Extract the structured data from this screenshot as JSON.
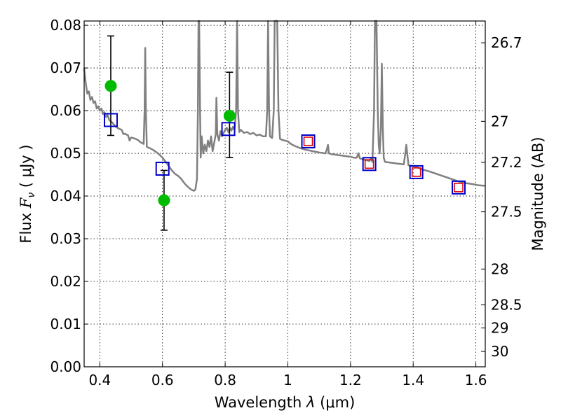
{
  "chart_data": {
    "type": "scatter",
    "xlabel_prefix": "Wavelength",
    "xlabel_symbol": "λ",
    "xlabel_unit": "(μm)",
    "ylabel_prefix": "Flux",
    "ylabel_symbol": "F",
    "ylabel_subscript": "ν",
    "ylabel_unit": "( μJy )",
    "y2label": "Magnitude (AB)",
    "xlim": [
      0.35,
      1.63
    ],
    "ylim": [
      0.0,
      0.081
    ],
    "x_ticks": [
      0.4,
      0.6,
      0.8,
      1.0,
      1.2,
      1.4,
      1.6
    ],
    "x_tick_labels": [
      "0.4",
      "0.6",
      "0.8",
      "1",
      "1.2",
      "1.4",
      "1.6"
    ],
    "y_ticks": [
      0.0,
      0.01,
      0.02,
      0.03,
      0.04,
      0.05,
      0.06,
      0.07,
      0.08
    ],
    "y_tick_labels": [
      "0.00",
      "0.01",
      "0.02",
      "0.03",
      "0.04",
      "0.05",
      "0.06",
      "0.07",
      "0.08"
    ],
    "y2_ticks": [
      {
        "label": "26.7",
        "flux": 0.0759
      },
      {
        "label": "27",
        "flux": 0.0575
      },
      {
        "label": "27.2",
        "flux": 0.0479
      },
      {
        "label": "27.5",
        "flux": 0.0363
      },
      {
        "label": "28",
        "flux": 0.0229
      },
      {
        "label": "28.5",
        "flux": 0.0145
      },
      {
        "label": "29",
        "flux": 0.0091
      },
      {
        "label": "30",
        "flux": 0.0036
      }
    ],
    "grid": true,
    "colors": {
      "sed": "#808080",
      "observed": "#00bb00",
      "model_box": "#0000cc",
      "ir_box": "#dd0000",
      "errorbar": "#000000"
    },
    "series": [
      {
        "kind": "sed_line",
        "points": [
          [
            0.35,
            0.07
          ],
          [
            0.355,
            0.0665
          ],
          [
            0.36,
            0.064
          ],
          [
            0.365,
            0.0645
          ],
          [
            0.37,
            0.0625
          ],
          [
            0.375,
            0.0632
          ],
          [
            0.38,
            0.0618
          ],
          [
            0.385,
            0.0622
          ],
          [
            0.39,
            0.0605
          ],
          [
            0.395,
            0.061
          ],
          [
            0.4,
            0.06
          ],
          [
            0.405,
            0.0605
          ],
          [
            0.41,
            0.0592
          ],
          [
            0.415,
            0.0596
          ],
          [
            0.42,
            0.0585
          ],
          [
            0.425,
            0.059
          ],
          [
            0.43,
            0.0578
          ],
          [
            0.44,
            0.0572
          ],
          [
            0.45,
            0.0563
          ],
          [
            0.46,
            0.0558
          ],
          [
            0.47,
            0.0555
          ],
          [
            0.475,
            0.0545
          ],
          [
            0.48,
            0.0546
          ],
          [
            0.49,
            0.0542
          ],
          [
            0.495,
            0.053
          ],
          [
            0.5,
            0.0537
          ],
          [
            0.51,
            0.0535
          ],
          [
            0.52,
            0.0532
          ],
          [
            0.53,
            0.0526
          ],
          [
            0.54,
            0.0522
          ],
          [
            0.543,
            0.06
          ],
          [
            0.545,
            0.0747
          ],
          [
            0.547,
            0.06
          ],
          [
            0.55,
            0.0515
          ],
          [
            0.56,
            0.0512
          ],
          [
            0.57,
            0.0508
          ],
          [
            0.58,
            0.0503
          ],
          [
            0.59,
            0.0497
          ],
          [
            0.6,
            0.049
          ],
          [
            0.61,
            0.048
          ],
          [
            0.62,
            0.047
          ],
          [
            0.63,
            0.046
          ],
          [
            0.64,
            0.0452
          ],
          [
            0.65,
            0.0447
          ],
          [
            0.66,
            0.044
          ],
          [
            0.67,
            0.043
          ],
          [
            0.68,
            0.0422
          ],
          [
            0.69,
            0.0416
          ],
          [
            0.7,
            0.0412
          ],
          [
            0.705,
            0.0415
          ],
          [
            0.71,
            0.044
          ],
          [
            0.713,
            0.06
          ],
          [
            0.715,
            0.081
          ],
          [
            0.717,
            0.081
          ],
          [
            0.72,
            0.06
          ],
          [
            0.722,
            0.049
          ],
          [
            0.725,
            0.054
          ],
          [
            0.73,
            0.05
          ],
          [
            0.735,
            0.052
          ],
          [
            0.74,
            0.0505
          ],
          [
            0.745,
            0.053
          ],
          [
            0.75,
            0.0515
          ],
          [
            0.755,
            0.054
          ],
          [
            0.76,
            0.0505
          ],
          [
            0.765,
            0.0525
          ],
          [
            0.77,
            0.0545
          ],
          [
            0.772,
            0.063
          ],
          [
            0.775,
            0.0545
          ],
          [
            0.78,
            0.053
          ],
          [
            0.785,
            0.0552
          ],
          [
            0.79,
            0.054
          ],
          [
            0.795,
            0.0548
          ],
          [
            0.8,
            0.0555
          ],
          [
            0.805,
            0.056
          ],
          [
            0.81,
            0.055
          ],
          [
            0.815,
            0.056
          ],
          [
            0.82,
            0.0553
          ],
          [
            0.825,
            0.0562
          ],
          [
            0.83,
            0.0555
          ],
          [
            0.835,
            0.06
          ],
          [
            0.838,
            0.081
          ],
          [
            0.841,
            0.06
          ],
          [
            0.845,
            0.055
          ],
          [
            0.85,
            0.0555
          ],
          [
            0.86,
            0.0548
          ],
          [
            0.87,
            0.055
          ],
          [
            0.88,
            0.0545
          ],
          [
            0.89,
            0.0548
          ],
          [
            0.9,
            0.0542
          ],
          [
            0.91,
            0.0544
          ],
          [
            0.92,
            0.054
          ],
          [
            0.93,
            0.054
          ],
          [
            0.934,
            0.06
          ],
          [
            0.937,
            0.081
          ],
          [
            0.94,
            0.06
          ],
          [
            0.943,
            0.054
          ],
          [
            0.95,
            0.0536
          ],
          [
            0.955,
            0.06
          ],
          [
            0.958,
            0.081
          ],
          [
            0.962,
            0.081
          ],
          [
            0.966,
            0.081
          ],
          [
            0.97,
            0.06
          ],
          [
            0.975,
            0.0534
          ],
          [
            0.98,
            0.0532
          ],
          [
            0.99,
            0.053
          ],
          [
            1.0,
            0.0528
          ],
          [
            1.01,
            0.0522
          ],
          [
            1.02,
            0.0518
          ],
          [
            1.03,
            0.0515
          ],
          [
            1.04,
            0.0512
          ],
          [
            1.05,
            0.051
          ],
          [
            1.06,
            0.0508
          ],
          [
            1.08,
            0.0505
          ],
          [
            1.1,
            0.0502
          ],
          [
            1.12,
            0.05
          ],
          [
            1.125,
            0.051
          ],
          [
            1.128,
            0.052
          ],
          [
            1.131,
            0.05
          ],
          [
            1.14,
            0.0498
          ],
          [
            1.16,
            0.0496
          ],
          [
            1.18,
            0.0494
          ],
          [
            1.2,
            0.0492
          ],
          [
            1.21,
            0.049
          ],
          [
            1.22,
            0.049
          ],
          [
            1.225,
            0.05
          ],
          [
            1.23,
            0.0488
          ],
          [
            1.24,
            0.0486
          ],
          [
            1.25,
            0.0484
          ],
          [
            1.26,
            0.0482
          ],
          [
            1.265,
            0.0488
          ],
          [
            1.27,
            0.048
          ],
          [
            1.275,
            0.06
          ],
          [
            1.278,
            0.081
          ],
          [
            1.283,
            0.081
          ],
          [
            1.287,
            0.06
          ],
          [
            1.29,
            0.052
          ],
          [
            1.293,
            0.05
          ],
          [
            1.297,
            0.056
          ],
          [
            1.3,
            0.071
          ],
          [
            1.303,
            0.056
          ],
          [
            1.306,
            0.049
          ],
          [
            1.31,
            0.048
          ],
          [
            1.33,
            0.0478
          ],
          [
            1.35,
            0.0476
          ],
          [
            1.37,
            0.0474
          ],
          [
            1.375,
            0.05
          ],
          [
            1.378,
            0.052
          ],
          [
            1.381,
            0.05
          ],
          [
            1.385,
            0.0472
          ],
          [
            1.4,
            0.047
          ],
          [
            1.41,
            0.0468
          ],
          [
            1.42,
            0.0465
          ],
          [
            1.43,
            0.0462
          ],
          [
            1.45,
            0.0458
          ],
          [
            1.47,
            0.0453
          ],
          [
            1.49,
            0.0448
          ],
          [
            1.51,
            0.0443
          ],
          [
            1.53,
            0.0438
          ],
          [
            1.55,
            0.0433
          ],
          [
            1.57,
            0.043
          ],
          [
            1.59,
            0.0428
          ],
          [
            1.61,
            0.0425
          ],
          [
            1.63,
            0.0424
          ]
        ]
      },
      {
        "kind": "observed",
        "points": [
          {
            "x": 0.435,
            "y": 0.0658,
            "yerr_low": 0.0542,
            "yerr_high": 0.0775
          },
          {
            "x": 0.605,
            "y": 0.039,
            "yerr_low": 0.032,
            "yerr_high": 0.046
          },
          {
            "x": 0.814,
            "y": 0.0588,
            "yerr_low": 0.049,
            "yerr_high": 0.069
          }
        ]
      },
      {
        "kind": "model_photometry",
        "points": [
          {
            "x": 0.435,
            "y": 0.0578
          },
          {
            "x": 0.6,
            "y": 0.0464
          },
          {
            "x": 0.81,
            "y": 0.0557
          },
          {
            "x": 1.065,
            "y": 0.0528
          },
          {
            "x": 1.26,
            "y": 0.0475
          },
          {
            "x": 1.41,
            "y": 0.0456
          },
          {
            "x": 1.545,
            "y": 0.042
          }
        ]
      },
      {
        "kind": "ir_photometry",
        "points": [
          {
            "x": 1.065,
            "y": 0.0528
          },
          {
            "x": 1.26,
            "y": 0.0475
          },
          {
            "x": 1.41,
            "y": 0.0456
          },
          {
            "x": 1.545,
            "y": 0.042
          }
        ]
      }
    ]
  }
}
